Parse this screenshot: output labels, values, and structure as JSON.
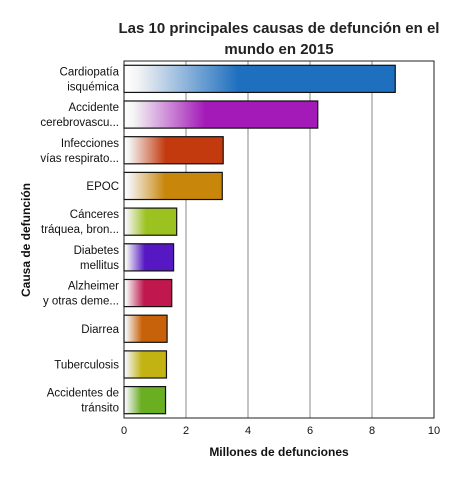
{
  "chart_data": {
    "type": "bar",
    "orientation": "horizontal",
    "title": "Las 10 principales causas de defunción en el mundo en 2015",
    "title_lines": [
      "Las 10 principales causas de defunción en el",
      "mundo en 2015"
    ],
    "xlabel": "Millones de defunciones",
    "ylabel": "Causa de defunción",
    "xlim": [
      0,
      10
    ],
    "xticks": [
      "0",
      "2",
      "4",
      "6",
      "8",
      "10"
    ],
    "grid": true,
    "legend": "none",
    "categories": [
      {
        "lines": [
          "Cardiopatía",
          "isquémica"
        ],
        "value": 8.75,
        "color": "#1f6fbf"
      },
      {
        "lines": [
          "Accidente",
          "cerebrovascu..."
        ],
        "value": 6.25,
        "color": "#a31ab8"
      },
      {
        "lines": [
          "Infecciones",
          "vías respirato..."
        ],
        "value": 3.2,
        "color": "#c23a0e"
      },
      {
        "lines": [
          "EPOC"
        ],
        "value": 3.17,
        "color": "#c8860a"
      },
      {
        "lines": [
          "Cánceres",
          "tráquea, bron..."
        ],
        "value": 1.7,
        "color": "#9cc21f"
      },
      {
        "lines": [
          "Diabetes",
          "mellitus"
        ],
        "value": 1.6,
        "color": "#5518c2"
      },
      {
        "lines": [
          "Alzheimer",
          "y otras deme..."
        ],
        "value": 1.54,
        "color": "#c0184e"
      },
      {
        "lines": [
          "Diarrea"
        ],
        "value": 1.39,
        "color": "#c8620a"
      },
      {
        "lines": [
          "Tuberculosis"
        ],
        "value": 1.37,
        "color": "#c2b312"
      },
      {
        "lines": [
          "Accidentes de",
          "tránsito"
        ],
        "value": 1.34,
        "color": "#6aae22"
      }
    ]
  }
}
